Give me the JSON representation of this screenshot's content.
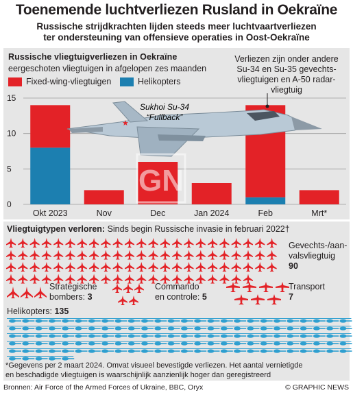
{
  "header": {
    "title": "Toenemende luchtverliezen Rusland in Oekraïne",
    "subtitle_line1": "Russische strijdkrachten lijden steeds meer luchtvaartverliezen",
    "subtitle_line2": "ter ondersteuning van offensieve operaties in Oost-Oekraïne"
  },
  "chart_section": {
    "title": "Russische vliegtuigverliezen in Oekraïne",
    "subtitle": "eergeschoten vliegtuigen in afgelopen zes maanden",
    "annotation_line1": "Verliezen zijn onder andere",
    "annotation_line2": "Su-34 en Su-35 gevechts-",
    "annotation_line3": "vliegtuigen en A-50 radar-",
    "annotation_line4": "vliegtuig",
    "plane_label_1": "Sukhoi Su-34",
    "plane_label_2": "“Fullback”",
    "watermark": "GN"
  },
  "colors": {
    "fixed_wing": "#e32227",
    "helicopters": "#1c7fb0",
    "panel": "#e6e6e6",
    "heli_icons": "#2e9fd0"
  },
  "chart_data": {
    "type": "bar",
    "stacked": true,
    "categories": [
      "Okt 2023",
      "Nov",
      "Dec",
      "Jan 2024",
      "Feb",
      "Mrt*"
    ],
    "series": [
      {
        "name": "Fixed-wing-vliegtuigen",
        "values": [
          6,
          2,
          6,
          3,
          13,
          2
        ]
      },
      {
        "name": "Helikopters",
        "values": [
          8,
          0,
          0,
          0,
          1,
          0
        ]
      }
    ],
    "ylim": [
      0,
      15
    ],
    "yticks": [
      "0",
      "5",
      "10",
      "15"
    ],
    "grid": true,
    "legend": "top-left"
  },
  "types_section": {
    "title_bold": "Vliegtuigtypen verloren:",
    "title_rest": " Sinds begin Russische invasie in februari 2022†",
    "fighters_label_1": "Gevechts-/aan-",
    "fighters_label_2": "valsvliegtuig",
    "fighters_value": "90",
    "bombers_label_1": "Strategische",
    "bombers_label_2": "bombers:",
    "bombers_value": "3",
    "command_label_1": "Commando",
    "command_label_2": "en controle:",
    "command_value": "5",
    "transport_label": "Transport",
    "transport_value": "7",
    "helicopters_label": "Helikopters:",
    "helicopters_value": "135"
  },
  "footnote_line1": "*Gegevens per 2 maart 2024. Omvat visueel bevestigde verliezen. Het aantal vernietigde",
  "footnote_line2": "en beschadigde vliegtuigen is waarschijnlijk aanzienlijk hoger dan geregistreerd",
  "footer": {
    "sources": "Bronnen: Air Force of the Armed Forces of Ukraine, BBC, Oryx",
    "credit": "© GRAPHIC NEWS"
  }
}
